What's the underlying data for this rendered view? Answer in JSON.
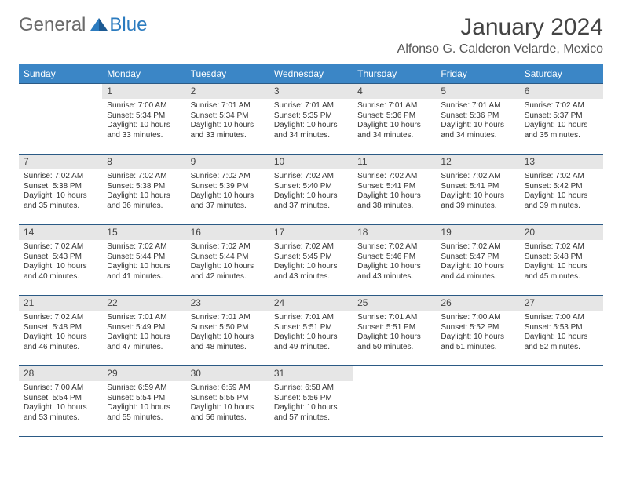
{
  "logo": {
    "text1": "General",
    "text2": "Blue"
  },
  "title": "January 2024",
  "location": "Alfonso G. Calderon Velarde, Mexico",
  "colors": {
    "header_bg": "#3b86c6",
    "header_text": "#ffffff",
    "daynum_bg": "#e6e6e6",
    "border": "#2b5a85",
    "logo_gray": "#6a6a6a",
    "logo_blue": "#2b7bbf"
  },
  "weekdays": [
    "Sunday",
    "Monday",
    "Tuesday",
    "Wednesday",
    "Thursday",
    "Friday",
    "Saturday"
  ],
  "weeks": [
    [
      null,
      {
        "n": "1",
        "sr": "Sunrise: 7:00 AM",
        "ss": "Sunset: 5:34 PM",
        "dl": "Daylight: 10 hours and 33 minutes."
      },
      {
        "n": "2",
        "sr": "Sunrise: 7:01 AM",
        "ss": "Sunset: 5:34 PM",
        "dl": "Daylight: 10 hours and 33 minutes."
      },
      {
        "n": "3",
        "sr": "Sunrise: 7:01 AM",
        "ss": "Sunset: 5:35 PM",
        "dl": "Daylight: 10 hours and 34 minutes."
      },
      {
        "n": "4",
        "sr": "Sunrise: 7:01 AM",
        "ss": "Sunset: 5:36 PM",
        "dl": "Daylight: 10 hours and 34 minutes."
      },
      {
        "n": "5",
        "sr": "Sunrise: 7:01 AM",
        "ss": "Sunset: 5:36 PM",
        "dl": "Daylight: 10 hours and 34 minutes."
      },
      {
        "n": "6",
        "sr": "Sunrise: 7:02 AM",
        "ss": "Sunset: 5:37 PM",
        "dl": "Daylight: 10 hours and 35 minutes."
      }
    ],
    [
      {
        "n": "7",
        "sr": "Sunrise: 7:02 AM",
        "ss": "Sunset: 5:38 PM",
        "dl": "Daylight: 10 hours and 35 minutes."
      },
      {
        "n": "8",
        "sr": "Sunrise: 7:02 AM",
        "ss": "Sunset: 5:38 PM",
        "dl": "Daylight: 10 hours and 36 minutes."
      },
      {
        "n": "9",
        "sr": "Sunrise: 7:02 AM",
        "ss": "Sunset: 5:39 PM",
        "dl": "Daylight: 10 hours and 37 minutes."
      },
      {
        "n": "10",
        "sr": "Sunrise: 7:02 AM",
        "ss": "Sunset: 5:40 PM",
        "dl": "Daylight: 10 hours and 37 minutes."
      },
      {
        "n": "11",
        "sr": "Sunrise: 7:02 AM",
        "ss": "Sunset: 5:41 PM",
        "dl": "Daylight: 10 hours and 38 minutes."
      },
      {
        "n": "12",
        "sr": "Sunrise: 7:02 AM",
        "ss": "Sunset: 5:41 PM",
        "dl": "Daylight: 10 hours and 39 minutes."
      },
      {
        "n": "13",
        "sr": "Sunrise: 7:02 AM",
        "ss": "Sunset: 5:42 PM",
        "dl": "Daylight: 10 hours and 39 minutes."
      }
    ],
    [
      {
        "n": "14",
        "sr": "Sunrise: 7:02 AM",
        "ss": "Sunset: 5:43 PM",
        "dl": "Daylight: 10 hours and 40 minutes."
      },
      {
        "n": "15",
        "sr": "Sunrise: 7:02 AM",
        "ss": "Sunset: 5:44 PM",
        "dl": "Daylight: 10 hours and 41 minutes."
      },
      {
        "n": "16",
        "sr": "Sunrise: 7:02 AM",
        "ss": "Sunset: 5:44 PM",
        "dl": "Daylight: 10 hours and 42 minutes."
      },
      {
        "n": "17",
        "sr": "Sunrise: 7:02 AM",
        "ss": "Sunset: 5:45 PM",
        "dl": "Daylight: 10 hours and 43 minutes."
      },
      {
        "n": "18",
        "sr": "Sunrise: 7:02 AM",
        "ss": "Sunset: 5:46 PM",
        "dl": "Daylight: 10 hours and 43 minutes."
      },
      {
        "n": "19",
        "sr": "Sunrise: 7:02 AM",
        "ss": "Sunset: 5:47 PM",
        "dl": "Daylight: 10 hours and 44 minutes."
      },
      {
        "n": "20",
        "sr": "Sunrise: 7:02 AM",
        "ss": "Sunset: 5:48 PM",
        "dl": "Daylight: 10 hours and 45 minutes."
      }
    ],
    [
      {
        "n": "21",
        "sr": "Sunrise: 7:02 AM",
        "ss": "Sunset: 5:48 PM",
        "dl": "Daylight: 10 hours and 46 minutes."
      },
      {
        "n": "22",
        "sr": "Sunrise: 7:01 AM",
        "ss": "Sunset: 5:49 PM",
        "dl": "Daylight: 10 hours and 47 minutes."
      },
      {
        "n": "23",
        "sr": "Sunrise: 7:01 AM",
        "ss": "Sunset: 5:50 PM",
        "dl": "Daylight: 10 hours and 48 minutes."
      },
      {
        "n": "24",
        "sr": "Sunrise: 7:01 AM",
        "ss": "Sunset: 5:51 PM",
        "dl": "Daylight: 10 hours and 49 minutes."
      },
      {
        "n": "25",
        "sr": "Sunrise: 7:01 AM",
        "ss": "Sunset: 5:51 PM",
        "dl": "Daylight: 10 hours and 50 minutes."
      },
      {
        "n": "26",
        "sr": "Sunrise: 7:00 AM",
        "ss": "Sunset: 5:52 PM",
        "dl": "Daylight: 10 hours and 51 minutes."
      },
      {
        "n": "27",
        "sr": "Sunrise: 7:00 AM",
        "ss": "Sunset: 5:53 PM",
        "dl": "Daylight: 10 hours and 52 minutes."
      }
    ],
    [
      {
        "n": "28",
        "sr": "Sunrise: 7:00 AM",
        "ss": "Sunset: 5:54 PM",
        "dl": "Daylight: 10 hours and 53 minutes."
      },
      {
        "n": "29",
        "sr": "Sunrise: 6:59 AM",
        "ss": "Sunset: 5:54 PM",
        "dl": "Daylight: 10 hours and 55 minutes."
      },
      {
        "n": "30",
        "sr": "Sunrise: 6:59 AM",
        "ss": "Sunset: 5:55 PM",
        "dl": "Daylight: 10 hours and 56 minutes."
      },
      {
        "n": "31",
        "sr": "Sunrise: 6:58 AM",
        "ss": "Sunset: 5:56 PM",
        "dl": "Daylight: 10 hours and 57 minutes."
      },
      null,
      null,
      null
    ]
  ]
}
